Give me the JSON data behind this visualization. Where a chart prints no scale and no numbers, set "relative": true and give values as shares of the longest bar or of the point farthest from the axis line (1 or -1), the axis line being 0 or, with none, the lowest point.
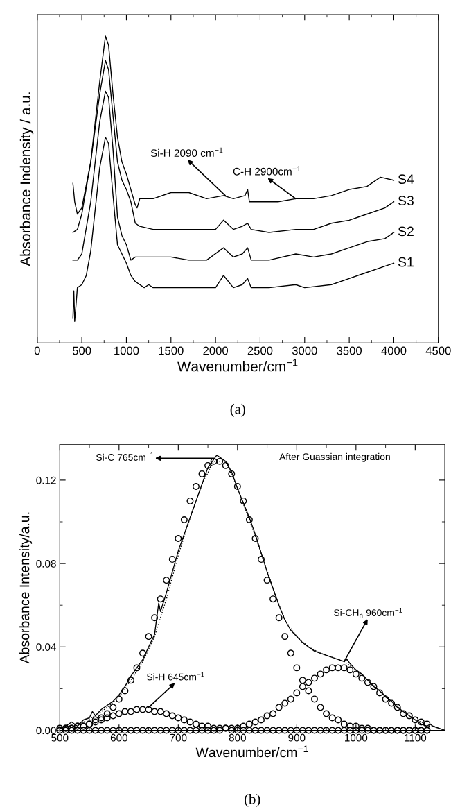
{
  "chart_data": [
    {
      "type": "line",
      "relative": true,
      "xlabel": "Wavenumber/cm$^{−1}$",
      "ylabel": "Absorbance Indensity / a.u.",
      "xlim": [
        0,
        4500
      ],
      "xticks": [
        0,
        500,
        1000,
        1500,
        2000,
        2500,
        3000,
        3500,
        4000,
        4500
      ],
      "annotations": [
        {
          "text": "Si-H 2090 cm$^{−1}$",
          "x": 2110,
          "y": 0.48
        },
        {
          "text": "C-H 2900cm$^{−1}$",
          "x": 2900,
          "y": 0.47
        },
        "(a)"
      ],
      "series": [
        {
          "name": "S1",
          "color": "#000000",
          "x": [
            400,
            410,
            420,
            450,
            500,
            550,
            600,
            700,
            765,
            800,
            850,
            900,
            950,
            1000,
            1050,
            1100,
            1200,
            1250,
            1300,
            1500,
            1700,
            1900,
            2000,
            2090,
            2200,
            2300,
            2360,
            2400,
            2600,
            2900,
            3000,
            3300,
            3500,
            3700,
            3900,
            4000
          ],
          "values": [
            0.08,
            0.17,
            0.07,
            0.18,
            0.19,
            0.22,
            0.3,
            0.57,
            0.67,
            0.65,
            0.48,
            0.32,
            0.29,
            0.26,
            0.22,
            0.2,
            0.18,
            0.19,
            0.18,
            0.18,
            0.18,
            0.18,
            0.18,
            0.22,
            0.18,
            0.19,
            0.21,
            0.18,
            0.18,
            0.19,
            0.18,
            0.19,
            0.21,
            0.23,
            0.25,
            0.26
          ]
        },
        {
          "name": "S2",
          "color": "#000000",
          "x": [
            400,
            450,
            500,
            600,
            700,
            765,
            800,
            850,
            900,
            950,
            1000,
            1050,
            1100,
            1300,
            1500,
            1700,
            1900,
            2090,
            2200,
            2300,
            2360,
            2400,
            2600,
            2900,
            3100,
            3300,
            3500,
            3700,
            3900,
            4000
          ],
          "values": [
            0.27,
            0.27,
            0.29,
            0.46,
            0.72,
            0.82,
            0.8,
            0.63,
            0.41,
            0.35,
            0.32,
            0.27,
            0.28,
            0.28,
            0.28,
            0.27,
            0.27,
            0.31,
            0.28,
            0.29,
            0.31,
            0.27,
            0.27,
            0.29,
            0.28,
            0.29,
            0.31,
            0.33,
            0.34,
            0.36
          ]
        },
        {
          "name": "S3",
          "color": "#000000",
          "x": [
            400,
            450,
            500,
            600,
            700,
            765,
            800,
            850,
            900,
            950,
            1000,
            1050,
            1100,
            1150,
            1300,
            1500,
            1700,
            1900,
            2000,
            2090,
            2200,
            2300,
            2360,
            2400,
            2600,
            2900,
            3100,
            3300,
            3500,
            3700,
            3900,
            4000
          ],
          "values": [
            0.36,
            0.37,
            0.42,
            0.59,
            0.81,
            0.92,
            0.89,
            0.74,
            0.59,
            0.53,
            0.5,
            0.46,
            0.39,
            0.38,
            0.37,
            0.37,
            0.37,
            0.37,
            0.37,
            0.4,
            0.37,
            0.38,
            0.39,
            0.37,
            0.36,
            0.37,
            0.37,
            0.39,
            0.4,
            0.42,
            0.44,
            0.46
          ]
        },
        {
          "name": "S4",
          "color": "#000000",
          "x": [
            400,
            420,
            450,
            500,
            600,
            700,
            765,
            800,
            850,
            900,
            950,
            1000,
            1050,
            1100,
            1120,
            1150,
            1300,
            1500,
            1600,
            1700,
            1900,
            2090,
            2200,
            2330,
            2360,
            2380,
            2500,
            2700,
            2900,
            3100,
            3300,
            3500,
            3700,
            3850,
            4000
          ],
          "values": [
            0.52,
            0.46,
            0.42,
            0.44,
            0.59,
            0.85,
            1.0,
            0.97,
            0.81,
            0.67,
            0.59,
            0.55,
            0.5,
            0.45,
            0.44,
            0.47,
            0.47,
            0.49,
            0.49,
            0.49,
            0.47,
            0.48,
            0.47,
            0.48,
            0.5,
            0.46,
            0.46,
            0.46,
            0.47,
            0.47,
            0.48,
            0.5,
            0.51,
            0.54,
            0.53
          ]
        }
      ]
    },
    {
      "type": "line",
      "xlabel": "Wavenumber/cm$^{−1}$",
      "ylabel": "Absorbance Intensity/a.u.",
      "xlim": [
        500,
        1150
      ],
      "xticks": [
        500,
        600,
        700,
        800,
        900,
        1000,
        1100
      ],
      "ylim": [
        0,
        0.137
      ],
      "yticks": [
        {
          "value": 0,
          "label": "0.00"
        },
        {
          "value": 0.04,
          "label": "0.04"
        },
        {
          "value": 0.08,
          "label": "0.08"
        },
        {
          "value": 0.12,
          "label": "0.12"
        }
      ],
      "annotations": [
        {
          "text": "Si-C 765cm$^{−1}$",
          "x": 760,
          "y": 0.1305
        },
        {
          "text": "Si-H 645cm$^{−1}$",
          "x": 650,
          "y": 0.011
        },
        {
          "text": "Si-CH$_{n}$ 960cm$^{−1}$",
          "x": 980,
          "y": 0.033
        },
        "After Guassian integration",
        "(b)"
      ],
      "series": [
        {
          "color": "#000000",
          "line_style": "solid",
          "x": [
            500,
            510,
            520,
            530,
            540,
            550,
            555,
            560,
            570,
            580,
            590,
            600,
            610,
            620,
            630,
            640,
            650,
            660,
            667,
            670,
            680,
            690,
            700,
            710,
            720,
            730,
            740,
            750,
            760,
            765,
            770,
            780,
            790,
            800,
            810,
            820,
            830,
            840,
            850,
            860,
            870,
            880,
            890,
            900,
            910,
            920,
            930,
            940,
            950,
            960,
            970,
            980,
            985,
            990,
            1000,
            1010,
            1020,
            1030,
            1040,
            1050,
            1060,
            1070,
            1080,
            1090,
            1100,
            1110,
            1120,
            1125,
            1130,
            1140,
            1150
          ],
          "values": [
            0.001,
            0.002,
            0.004,
            0.002,
            0.005,
            0.006,
            0.009,
            0.007,
            0.01,
            0.012,
            0.014,
            0.017,
            0.021,
            0.026,
            0.03,
            0.034,
            0.04,
            0.046,
            0.061,
            0.057,
            0.066,
            0.076,
            0.086,
            0.094,
            0.102,
            0.11,
            0.118,
            0.126,
            0.13,
            0.132,
            0.131,
            0.129,
            0.124,
            0.116,
            0.109,
            0.102,
            0.094,
            0.085,
            0.076,
            0.068,
            0.06,
            0.053,
            0.048,
            0.045,
            0.042,
            0.04,
            0.038,
            0.037,
            0.036,
            0.035,
            0.034,
            0.033,
            0.034,
            0.032,
            0.029,
            0.027,
            0.024,
            0.021,
            0.019,
            0.016,
            0.014,
            0.011,
            0.009,
            0.007,
            0.005,
            0.003,
            0.002,
            0.003,
            0.002,
            0.001,
            0.0
          ]
        },
        {
          "color": "#000000",
          "line_style": "dotted",
          "x": [
            500,
            520,
            540,
            560,
            580,
            600,
            620,
            640,
            660,
            680,
            700,
            720,
            740,
            760,
            780,
            800,
            820,
            840,
            860,
            880,
            900,
            920,
            940,
            960,
            980,
            1000,
            1020,
            1040,
            1060,
            1080,
            1100,
            1120,
            1140
          ],
          "values": [
            0.001,
            0.002,
            0.004,
            0.007,
            0.011,
            0.016,
            0.024,
            0.033,
            0.045,
            0.063,
            0.084,
            0.102,
            0.118,
            0.129,
            0.129,
            0.116,
            0.101,
            0.085,
            0.068,
            0.053,
            0.045,
            0.04,
            0.037,
            0.035,
            0.033,
            0.029,
            0.024,
            0.019,
            0.014,
            0.009,
            0.005,
            0.003,
            0.001
          ]
        },
        {
          "type": "scatter",
          "marker": "circle",
          "color": "#000000",
          "x": [
            500,
            510,
            520,
            530,
            540,
            550,
            560,
            570,
            580,
            590,
            600,
            610,
            620,
            630,
            640,
            650,
            660,
            670,
            680,
            690,
            700,
            710,
            720,
            730,
            740,
            750,
            760,
            770,
            780,
            790,
            800,
            810,
            820,
            830,
            840,
            850,
            860,
            870,
            880,
            890,
            900,
            910,
            920,
            930,
            940,
            950,
            960,
            970,
            980,
            990,
            1000,
            1010,
            1020,
            1030,
            1040,
            1050,
            1060,
            1070,
            1080,
            1090,
            1100,
            1110,
            1120
          ],
          "values": [
            0.0,
            0.001,
            0.001,
            0.002,
            0.002,
            0.003,
            0.005,
            0.006,
            0.008,
            0.011,
            0.015,
            0.019,
            0.024,
            0.03,
            0.037,
            0.045,
            0.054,
            0.063,
            0.072,
            0.082,
            0.092,
            0.101,
            0.11,
            0.117,
            0.123,
            0.127,
            0.129,
            0.129,
            0.127,
            0.123,
            0.117,
            0.11,
            0.101,
            0.092,
            0.082,
            0.072,
            0.063,
            0.054,
            0.045,
            0.037,
            0.03,
            0.024,
            0.019,
            0.015,
            0.011,
            0.008,
            0.006,
            0.005,
            0.003,
            0.002,
            0.002,
            0.001,
            0.001,
            0,
            0,
            0,
            0,
            0,
            0,
            0,
            0,
            0,
            0
          ]
        },
        {
          "type": "scatter",
          "marker": "circle",
          "color": "#000000",
          "x": [
            500,
            510,
            520,
            530,
            540,
            550,
            560,
            570,
            580,
            590,
            600,
            610,
            620,
            630,
            640,
            650,
            660,
            670,
            680,
            690,
            700,
            710,
            720,
            730,
            740,
            750,
            760,
            770,
            780,
            790,
            800,
            810,
            820,
            830,
            840,
            850,
            860,
            870,
            880,
            890,
            900,
            910,
            920,
            930,
            940,
            950,
            960,
            970,
            980,
            990,
            1000,
            1010,
            1020,
            1030,
            1040,
            1050,
            1060,
            1070,
            1080,
            1090,
            1100,
            1110,
            1120
          ],
          "values": [
            0.001,
            0.001,
            0.001,
            0.002,
            0.002,
            0.003,
            0.004,
            0.005,
            0.006,
            0.007,
            0.008,
            0.009,
            0.009,
            0.01,
            0.01,
            0.01,
            0.009,
            0.009,
            0.008,
            0.007,
            0.006,
            0.005,
            0.004,
            0.003,
            0.002,
            0.002,
            0.001,
            0.001,
            0.001,
            0,
            0,
            0,
            0,
            0,
            0,
            0,
            0,
            0,
            0,
            0,
            0,
            0,
            0,
            0,
            0,
            0,
            0,
            0,
            0,
            0,
            0,
            0,
            0,
            0,
            0,
            0,
            0,
            0,
            0,
            0,
            0,
            0,
            0
          ]
        },
        {
          "type": "scatter",
          "marker": "circle",
          "color": "#000000",
          "x": [
            500,
            510,
            520,
            530,
            540,
            550,
            560,
            570,
            580,
            590,
            600,
            610,
            620,
            630,
            640,
            650,
            660,
            670,
            680,
            690,
            700,
            710,
            720,
            730,
            740,
            750,
            760,
            770,
            780,
            790,
            800,
            810,
            820,
            830,
            840,
            850,
            860,
            870,
            880,
            890,
            900,
            910,
            920,
            930,
            940,
            950,
            960,
            970,
            980,
            990,
            1000,
            1010,
            1020,
            1030,
            1040,
            1050,
            1060,
            1070,
            1080,
            1090,
            1100,
            1110,
            1120
          ],
          "values": [
            0,
            0,
            0,
            0,
            0,
            0,
            0,
            0,
            0,
            0,
            0,
            0,
            0,
            0,
            0,
            0,
            0,
            0,
            0,
            0,
            0,
            0,
            0,
            0,
            0,
            0,
            0,
            0,
            0.001,
            0.001,
            0.001,
            0.002,
            0.003,
            0.004,
            0.005,
            0.007,
            0.008,
            0.011,
            0.013,
            0.015,
            0.018,
            0.021,
            0.023,
            0.025,
            0.027,
            0.029,
            0.03,
            0.03,
            0.03,
            0.029,
            0.027,
            0.025,
            0.023,
            0.021,
            0.018,
            0.015,
            0.013,
            0.011,
            0.008,
            0.007,
            0.005,
            0.004,
            0.003
          ]
        }
      ]
    }
  ]
}
